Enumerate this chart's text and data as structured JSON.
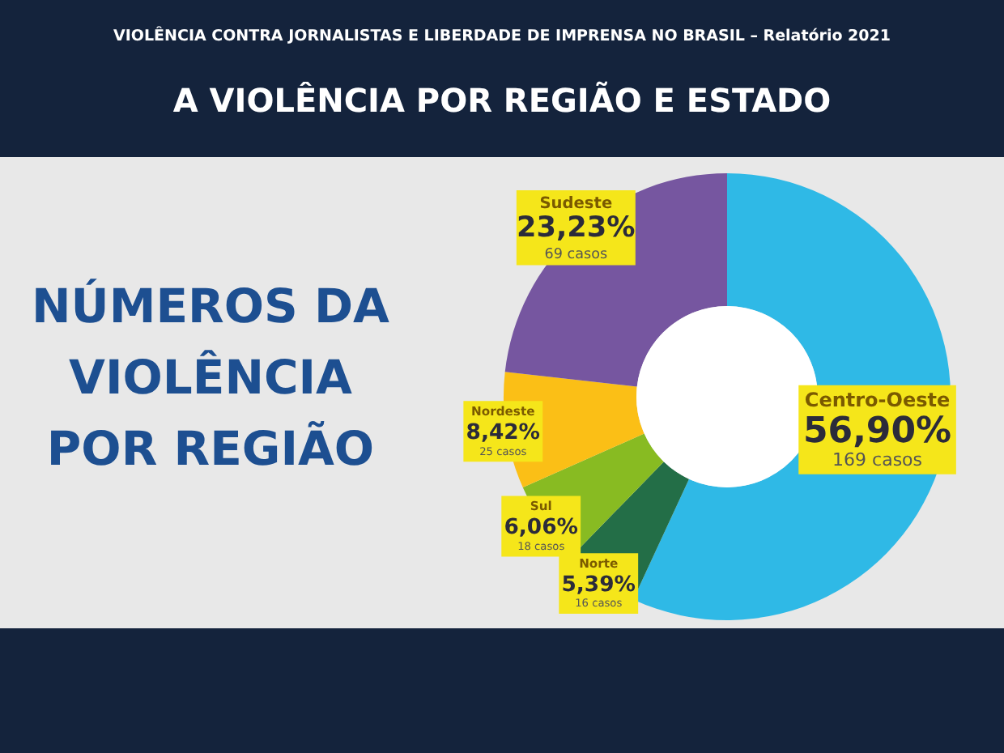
{
  "chart_data": {
    "type": "donut",
    "title": "A VIOLÊNCIA POR REGIÃO E ESTADO",
    "subtitle": "VIOLÊNCIA CONTRA JORNALISTAS E LIBERDADE DE IMPRENSA NO BRASIL – Relatório 2021",
    "annotations": [
      "NÚMEROS DA\nVIOLÊNCIA\nPOR REGIÃO"
    ],
    "categories": [
      "Centro-Oeste",
      "Norte",
      "Sul",
      "Nordeste",
      "Sudeste"
    ],
    "values": [
      56.9,
      5.39,
      6.06,
      8.42,
      23.23
    ],
    "value_labels": [
      "56,90%\n169 casos",
      "5,39%\n16 casos",
      "6,06%\n18 casos",
      "8,42%\n25 casos",
      "23,23%\n69 casos"
    ],
    "colors": [
      "#2fb9e6",
      "#236e47",
      "#88bb22",
      "#fbbf16",
      "#7656a0"
    ]
  }
}
